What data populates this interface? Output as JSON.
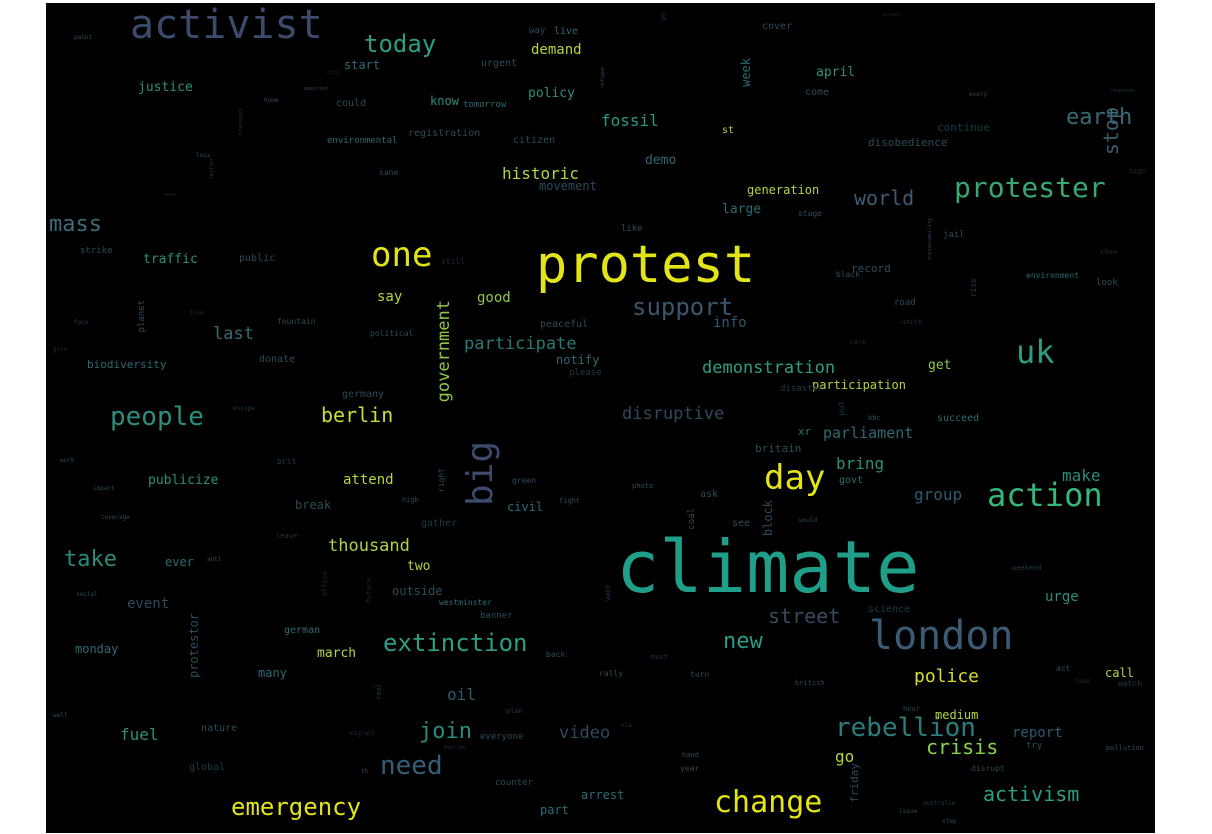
{
  "colors": {
    "background": "#000000",
    "palette": [
      "#fde725",
      "#b5de2b",
      "#6ece58",
      "#35b779",
      "#1f9e89",
      "#26828e",
      "#31688e",
      "#3e4989",
      "#482878",
      "#440154"
    ]
  },
  "words": [
    {
      "text": "climate",
      "weight": 1.0,
      "color": "#1f9e89"
    },
    {
      "text": "protest",
      "weight": 0.82,
      "color": "#e2e418"
    },
    {
      "text": "london",
      "weight": 0.55,
      "color": "#3b5a74"
    },
    {
      "text": "activist",
      "weight": 0.5,
      "color": "#3e4a6b"
    },
    {
      "text": "protester",
      "weight": 0.4,
      "color": "#39a772"
    },
    {
      "text": "change",
      "weight": 0.4,
      "color": "#e2e418"
    },
    {
      "text": "action",
      "weight": 0.4,
      "color": "#35b779"
    },
    {
      "text": "one",
      "weight": 0.4,
      "color": "#e2e418"
    },
    {
      "text": "uk",
      "weight": 0.4,
      "color": "#2e9c82"
    },
    {
      "text": "day",
      "weight": 0.4,
      "color": "#e2e418"
    },
    {
      "text": "big",
      "weight": 0.42,
      "color": "#3e4a6b"
    },
    {
      "text": "people",
      "weight": 0.32,
      "color": "#2e8e7b"
    },
    {
      "text": "rebellion",
      "weight": 0.32,
      "color": "#2a7d7a"
    },
    {
      "text": "need",
      "weight": 0.32,
      "color": "#335e78"
    },
    {
      "text": "emergency",
      "weight": 0.3,
      "color": "#e2e418"
    },
    {
      "text": "extinction",
      "weight": 0.3,
      "color": "#2e9e82"
    },
    {
      "text": "support",
      "weight": 0.3,
      "color": "#3a566e"
    },
    {
      "text": "today",
      "weight": 0.3,
      "color": "#2e9e82"
    },
    {
      "text": "mass",
      "weight": 0.28,
      "color": "#3e6a7a"
    },
    {
      "text": "take",
      "weight": 0.28,
      "color": "#2a8a7c"
    },
    {
      "text": "new",
      "weight": 0.28,
      "color": "#2a9a82"
    },
    {
      "text": "activism",
      "weight": 0.26,
      "color": "#2e9e82"
    },
    {
      "text": "crisis",
      "weight": 0.26,
      "color": "#8ad24a"
    },
    {
      "text": "join",
      "weight": 0.26,
      "color": "#2a8a7c"
    },
    {
      "text": "earth",
      "weight": 0.26,
      "color": "#3a6a7a"
    },
    {
      "text": "berlin",
      "weight": 0.24,
      "color": "#c8dc3a"
    },
    {
      "text": "street",
      "weight": 0.24,
      "color": "#394a5e"
    },
    {
      "text": "police",
      "weight": 0.24,
      "color": "#d8dc2a"
    },
    {
      "text": "world",
      "weight": 0.24,
      "color": "#3e5a74"
    },
    {
      "text": "stop",
      "weight": 0.24,
      "color": "#3a5e6e"
    },
    {
      "text": "government",
      "weight": 0.22,
      "color": "#8ec84a"
    },
    {
      "text": "demonstration",
      "weight": 0.22,
      "color": "#2e9e82"
    },
    {
      "text": "thousand",
      "weight": 0.22,
      "color": "#b0d048"
    },
    {
      "text": "participate",
      "weight": 0.2,
      "color": "#2a7a72"
    },
    {
      "text": "video",
      "weight": 0.2,
      "color": "#2e4a5a"
    },
    {
      "text": "disruptive",
      "weight": 0.2,
      "color": "#2e4a5a"
    },
    {
      "text": "historic",
      "weight": 0.2,
      "color": "#b5d440"
    },
    {
      "text": "fossil",
      "weight": 0.2,
      "color": "#2a9a82"
    },
    {
      "text": "last",
      "weight": 0.2,
      "color": "#3a6a74"
    },
    {
      "text": "group",
      "weight": 0.2,
      "color": "#2e5a6e"
    },
    {
      "text": "make",
      "weight": 0.2,
      "color": "#2a8a7c"
    },
    {
      "text": "bring",
      "weight": 0.2,
      "color": "#2e8e7b"
    },
    {
      "text": "parliament",
      "weight": 0.2,
      "color": "#2e6a74"
    },
    {
      "text": "fuel",
      "weight": 0.2,
      "color": "#2e8e7b"
    },
    {
      "text": "oil",
      "weight": 0.2,
      "color": "#2e5a6e"
    },
    {
      "text": "go",
      "weight": 0.2,
      "color": "#b5d440"
    },
    {
      "text": "report",
      "weight": 0.18,
      "color": "#2e5a6e"
    },
    {
      "text": "demand",
      "weight": 0.18,
      "color": "#b5d440"
    },
    {
      "text": "say",
      "weight": 0.18,
      "color": "#b5d440"
    },
    {
      "text": "good",
      "weight": 0.18,
      "color": "#8ec84a"
    },
    {
      "text": "info",
      "weight": 0.18,
      "color": "#2e5a6e"
    },
    {
      "text": "event",
      "weight": 0.18,
      "color": "#2e4a5a"
    },
    {
      "text": "urge",
      "weight": 0.18,
      "color": "#2e8e7b"
    },
    {
      "text": "attend",
      "weight": 0.17,
      "color": "#b5d440"
    },
    {
      "text": "publicize",
      "weight": 0.17,
      "color": "#2e8e7b"
    },
    {
      "text": "traffic",
      "weight": 0.17,
      "color": "#2e8e7b"
    },
    {
      "text": "justice",
      "weight": 0.17,
      "color": "#2e8e7b"
    },
    {
      "text": "demo",
      "weight": 0.17,
      "color": "#2e6a74"
    },
    {
      "text": "movement",
      "weight": 0.17,
      "color": "#2a4a5a"
    },
    {
      "text": "generation",
      "weight": 0.16,
      "color": "#b5d440"
    },
    {
      "text": "large",
      "weight": 0.16,
      "color": "#2e6a74"
    },
    {
      "text": "march",
      "weight": 0.16,
      "color": "#b5d440"
    },
    {
      "text": "medium",
      "weight": 0.16,
      "color": "#b5d440"
    },
    {
      "text": "get",
      "weight": 0.16,
      "color": "#8ec84a"
    },
    {
      "text": "participation",
      "weight": 0.16,
      "color": "#b5d440"
    },
    {
      "text": "two",
      "weight": 0.16,
      "color": "#b5d440"
    },
    {
      "text": "outside",
      "weight": 0.15,
      "color": "#2e4a5a"
    },
    {
      "text": "april",
      "weight": 0.15,
      "color": "#2e8e7b"
    },
    {
      "text": "week",
      "weight": 0.15,
      "color": "#2e6a74"
    },
    {
      "text": "start",
      "weight": 0.15,
      "color": "#2e6a74"
    },
    {
      "text": "policy",
      "weight": 0.15,
      "color": "#2e8e7b"
    },
    {
      "text": "know",
      "weight": 0.15,
      "color": "#2e8e7b"
    },
    {
      "text": "call",
      "weight": 0.15,
      "color": "#b5d440"
    },
    {
      "text": "ever",
      "weight": 0.14,
      "color": "#2e6a74"
    },
    {
      "text": "monday",
      "weight": 0.14,
      "color": "#2e6a74"
    },
    {
      "text": "protestor",
      "weight": 0.14,
      "color": "#2e4a5a"
    },
    {
      "text": "notify",
      "weight": 0.14,
      "color": "#2e6a74"
    },
    {
      "text": "civil",
      "weight": 0.14,
      "color": "#2e6a74"
    },
    {
      "text": "break",
      "weight": 0.14,
      "color": "#2e4a5a"
    },
    {
      "text": "arrest",
      "weight": 0.14,
      "color": "#2e6a74"
    },
    {
      "text": "part",
      "weight": 0.14,
      "color": "#2e6a74"
    },
    {
      "text": "block",
      "weight": 0.14,
      "color": "#2e4a5a"
    },
    {
      "text": "biodiversity",
      "weight": 0.13,
      "color": "#2e6a74"
    },
    {
      "text": "many",
      "weight": 0.13,
      "color": "#2e6a74"
    },
    {
      "text": "disobedience",
      "weight": 0.13,
      "color": "#2e4a5a"
    },
    {
      "text": "continue",
      "weight": 0.13,
      "color": "#1e3a4a"
    },
    {
      "text": "record",
      "weight": 0.12,
      "color": "#2e4a5a"
    },
    {
      "text": "britain",
      "weight": 0.12,
      "color": "#2e4a5a"
    },
    {
      "text": "succeed",
      "weight": 0.12,
      "color": "#2e6a74"
    },
    {
      "text": "friday",
      "weight": 0.12,
      "color": "#2e4a5a"
    },
    {
      "text": "xr",
      "weight": 0.12,
      "color": "#2e6a74"
    },
    {
      "text": "peaceful",
      "weight": 0.11,
      "color": "#2e4a5a"
    },
    {
      "text": "germany",
      "weight": 0.11,
      "color": "#2e4a5a"
    },
    {
      "text": "donate",
      "weight": 0.11,
      "color": "#2e4a5a"
    },
    {
      "text": "public",
      "weight": 0.11,
      "color": "#2e4a5a"
    },
    {
      "text": "strike",
      "weight": 0.1,
      "color": "#2e4a5a"
    },
    {
      "text": "german",
      "weight": 0.11,
      "color": "#2e6a74"
    },
    {
      "text": "nature",
      "weight": 0.11,
      "color": "#2e4a5a"
    },
    {
      "text": "global",
      "weight": 0.1,
      "color": "#1e3a4a"
    },
    {
      "text": "st",
      "weight": 0.11,
      "color": "#b5d440"
    },
    {
      "text": "come",
      "weight": 0.11,
      "color": "#2e4a5a"
    },
    {
      "text": "citizen",
      "weight": 0.11,
      "color": "#2e4a5a"
    },
    {
      "text": "registration",
      "weight": 0.1,
      "color": "#2e4a5a"
    },
    {
      "text": "environmental",
      "weight": 0.1,
      "color": "#2e6a74"
    },
    {
      "text": "urgent",
      "weight": 0.1,
      "color": "#2e4a5a"
    },
    {
      "text": "tomorrow",
      "weight": 0.1,
      "color": "#2e6a74"
    },
    {
      "text": "could",
      "weight": 0.1,
      "color": "#2e4a5a"
    },
    {
      "text": "way",
      "weight": 0.1,
      "color": "#2e4a5a"
    },
    {
      "text": "live",
      "weight": 0.1,
      "color": "#2e6a74"
    },
    {
      "text": "cover",
      "weight": 0.1,
      "color": "#2e4a5a"
    },
    {
      "text": "see",
      "weight": 0.1,
      "color": "#2e4a5a"
    },
    {
      "text": "ask",
      "weight": 0.1,
      "color": "#2e4a5a"
    },
    {
      "text": "coal",
      "weight": 0.1,
      "color": "#2e4a5a"
    },
    {
      "text": "govt",
      "weight": 0.1,
      "color": "#2e6a74"
    },
    {
      "text": "gather",
      "weight": 0.1,
      "color": "#1e3a4a"
    },
    {
      "text": "banner",
      "weight": 0.1,
      "color": "#2e4a5a"
    },
    {
      "text": "westminster",
      "weight": 0.09,
      "color": "#2e6a74"
    },
    {
      "text": "science",
      "weight": 0.1,
      "color": "#1e3a4a"
    },
    {
      "text": "disaster",
      "weight": 0.09,
      "color": "#1e3a4a"
    },
    {
      "text": "everyone",
      "weight": 0.1,
      "color": "#2e4a5a"
    },
    {
      "text": "counter",
      "weight": 0.09,
      "color": "#2e4a5a"
    },
    {
      "text": "please",
      "weight": 0.09,
      "color": "#1e3a4a"
    },
    {
      "text": "political",
      "weight": 0.08,
      "color": "#2e4a5a"
    },
    {
      "text": "fountain",
      "weight": 0.08,
      "color": "#2e4a5a"
    },
    {
      "text": "planet",
      "weight": 0.08,
      "color": "#2e4a5a"
    },
    {
      "text": "jail",
      "weight": 0.09,
      "color": "#2e4a5a"
    },
    {
      "text": "road",
      "weight": 0.09,
      "color": "#2e4a5a"
    },
    {
      "text": "black",
      "weight": 0.08,
      "color": "#2e4a5a"
    },
    {
      "text": "environment",
      "weight": 0.08,
      "color": "#2e6a74"
    },
    {
      "text": "look",
      "weight": 0.08,
      "color": "#2e4a5a"
    },
    {
      "text": "like",
      "weight": 0.09,
      "color": "#2e4a5a"
    },
    {
      "text": "stage",
      "weight": 0.08,
      "color": "#2e4a5a"
    },
    {
      "text": "still",
      "weight": 0.08,
      "color": "#1e2a3a"
    },
    {
      "text": "sane",
      "weight": 0.08,
      "color": "#2e4a5a"
    },
    {
      "text": "rise",
      "weight": 0.08,
      "color": "#1e3a4a"
    },
    {
      "text": "show",
      "weight": 0.07,
      "color": "#1e2a3a"
    },
    {
      "text": "sign",
      "weight": 0.07,
      "color": "#1e2a3a"
    },
    {
      "text": "unite",
      "weight": 0.07,
      "color": "#1e2a3a"
    },
    {
      "text": "care",
      "weight": 0.07,
      "color": "#1e2a3a"
    },
    {
      "text": "bbc",
      "weight": 0.07,
      "color": "#2e4a5a"
    },
    {
      "text": "put",
      "weight": 0.07,
      "color": "#1e3a4a"
    },
    {
      "text": "green",
      "weight": 0.08,
      "color": "#2e4a5a"
    },
    {
      "text": "fight",
      "weight": 0.07,
      "color": "#2e4a5a"
    },
    {
      "text": "photo",
      "weight": 0.07,
      "color": "#2e4a5a"
    },
    {
      "text": "high",
      "weight": 0.07,
      "color": "#2e4a5a"
    },
    {
      "text": "right",
      "weight": 0.07,
      "color": "#2e4a5a"
    },
    {
      "text": "brit",
      "weight": 0.07,
      "color": "#1e3a4a"
    },
    {
      "text": "leave",
      "weight": 0.07,
      "color": "#1e3a4a"
    },
    {
      "text": "want",
      "weight": 0.07,
      "color": "#1e3a4a"
    },
    {
      "text": "future",
      "weight": 0.07,
      "color": "#1e2a3a"
    },
    {
      "text": "office",
      "weight": 0.07,
      "color": "#1e2a3a"
    },
    {
      "text": "back",
      "weight": 0.07,
      "color": "#2e4a5a"
    },
    {
      "text": "must",
      "weight": 0.07,
      "color": "#1e3a4a"
    },
    {
      "text": "rally",
      "weight": 0.07,
      "color": "#2e4a5a"
    },
    {
      "text": "turn",
      "weight": 0.07,
      "color": "#2e4a5a"
    },
    {
      "text": "real",
      "weight": 0.07,
      "color": "#1e3a4a"
    },
    {
      "text": "plan",
      "weight": 0.07,
      "color": "#1e3a4a"
    },
    {
      "text": "migrant",
      "weight": 0.06,
      "color": "#1e2a3a"
    },
    {
      "text": "marche",
      "weight": 0.06,
      "color": "#1e2a3a"
    },
    {
      "text": "via",
      "weight": 0.06,
      "color": "#1e2a3a"
    },
    {
      "text": "th",
      "weight": 0.06,
      "color": "#2e4a5a"
    },
    {
      "text": "hand",
      "weight": 0.07,
      "color": "#2e4a5a"
    },
    {
      "text": "year",
      "weight": 0.07,
      "color": "#2e4a5a"
    },
    {
      "text": "hour",
      "weight": 0.07,
      "color": "#2e4a5a"
    },
    {
      "text": "disrupt",
      "weight": 0.07,
      "color": "#2e4a5a"
    },
    {
      "text": "try",
      "weight": 0.08,
      "color": "#2e4a5a"
    },
    {
      "text": "british",
      "weight": 0.07,
      "color": "#2e4a5a"
    },
    {
      "text": "act",
      "weight": 0.07,
      "color": "#2e4a5a"
    },
    {
      "text": "base",
      "weight": 0.06,
      "color": "#1e2a3a"
    },
    {
      "text": "watch",
      "weight": 0.07,
      "color": "#1e3a4a"
    },
    {
      "text": "pollution",
      "weight": 0.07,
      "color": "#2e4a5a"
    },
    {
      "text": "australie",
      "weight": 0.06,
      "color": "#1e3a4a"
    },
    {
      "text": "issue",
      "weight": 0.06,
      "color": "#2e4a5a"
    },
    {
      "text": "step",
      "weight": 0.06,
      "color": "#2e4a5a"
    },
    {
      "text": "weekend",
      "weight": 0.07,
      "color": "#1e3a4a"
    },
    {
      "text": "would",
      "weight": 0.06,
      "color": "#2e4a5a"
    },
    {
      "text": "well",
      "weight": 0.06,
      "color": "#2e4a5a"
    },
    {
      "text": "social",
      "weight": 0.06,
      "color": "#2e4a5a"
    },
    {
      "text": "coverage",
      "weight": 0.06,
      "color": "#2e4a5a"
    },
    {
      "text": "impact",
      "weight": 0.06,
      "color": "#2e4a5a"
    },
    {
      "text": "work",
      "weight": 0.06,
      "color": "#2e4a5a"
    },
    {
      "text": "anti",
      "weight": 0.06,
      "color": "#2e4a5a"
    },
    {
      "text": "europe",
      "weight": 0.06,
      "color": "#1e3a4a"
    },
    {
      "text": "give",
      "weight": 0.06,
      "color": "#1e2a3a"
    },
    {
      "text": "face",
      "weight": 0.06,
      "color": "#1e3a4a"
    },
    {
      "text": "link",
      "weight": 0.06,
      "color": "#1e2a3a"
    },
    {
      "text": "meet",
      "weight": 0.05,
      "color": "#1e2a3a"
    },
    {
      "text": "loss",
      "weight": 0.06,
      "color": "#2e4a5a"
    },
    {
      "text": "twitter",
      "weight": 0.05,
      "color": "#1e3a4a"
    },
    {
      "text": "transport",
      "weight": 0.05,
      "color": "#1e3a4a"
    },
    {
      "text": "home",
      "weight": 0.05,
      "color": "#2e4a5a"
    },
    {
      "text": "question",
      "weight": 0.05,
      "color": "#2e4a5a"
    },
    {
      "text": "city",
      "weight": 0.05,
      "color": "#1e2a3a"
    },
    {
      "text": "refugee",
      "weight": 0.05,
      "color": "#2e4a5a"
    },
    {
      "text": "paint",
      "weight": 0.05,
      "color": "#2e4a5a"
    },
    {
      "text": "pm",
      "weight": 0.06,
      "color": "#1e3a4a"
    },
    {
      "text": "across",
      "weight": 0.05,
      "color": "#1e2a3a"
    },
    {
      "text": "every",
      "weight": 0.05,
      "color": "#2e4a5a"
    },
    {
      "text": "response",
      "weight": 0.05,
      "color": "#1e3a4a"
    },
    {
      "text": "sustainability",
      "weight": 0.05,
      "color": "#2e4a5a"
    }
  ]
}
